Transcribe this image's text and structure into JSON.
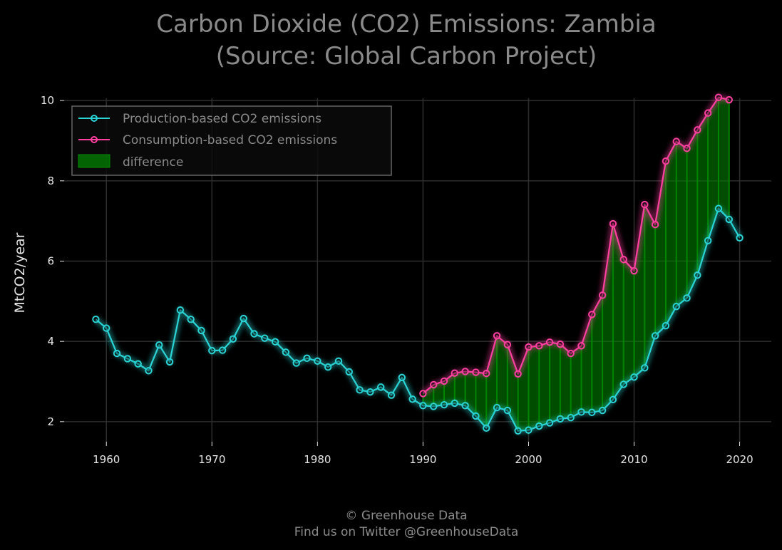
{
  "chart_data": {
    "type": "line",
    "title": "Carbon Dioxide (CO2) Emissions: Zambia",
    "subtitle": "(Source: Global Carbon Project)",
    "xlabel": "",
    "ylabel": "MtCO2/year",
    "xlim": [
      1956,
      2023
    ],
    "ylim": [
      1.5,
      10.5
    ],
    "x_ticks": [
      "1960",
      "1970",
      "1980",
      "1990",
      "2000",
      "2010",
      "2020"
    ],
    "y_ticks": [
      "2",
      "4",
      "6",
      "8",
      "10"
    ],
    "grid": true,
    "legend_position": "top-left",
    "background": "#000000",
    "series": [
      {
        "name": "Production-based CO2 emissions",
        "color": "#2ad4d4",
        "x": [
          1959,
          1960,
          1961,
          1962,
          1963,
          1964,
          1965,
          1966,
          1967,
          1968,
          1969,
          1970,
          1971,
          1972,
          1973,
          1974,
          1975,
          1976,
          1977,
          1978,
          1979,
          1980,
          1981,
          1982,
          1983,
          1984,
          1985,
          1986,
          1987,
          1988,
          1989,
          1990,
          1991,
          1992,
          1993,
          1994,
          1995,
          1996,
          1997,
          1998,
          1999,
          2000,
          2001,
          2002,
          2003,
          2004,
          2005,
          2006,
          2007,
          2008,
          2009,
          2010,
          2011,
          2012,
          2013,
          2014,
          2015,
          2016,
          2017,
          2018,
          2019,
          2020
        ],
        "y": [
          4.55,
          4.33,
          3.7,
          3.57,
          3.44,
          3.27,
          3.91,
          3.49,
          4.78,
          4.55,
          4.27,
          3.77,
          3.78,
          4.06,
          4.57,
          4.19,
          4.08,
          3.99,
          3.73,
          3.46,
          3.58,
          3.51,
          3.36,
          3.51,
          3.24,
          2.79,
          2.74,
          2.86,
          2.66,
          3.1,
          2.56,
          2.4,
          2.38,
          2.42,
          2.46,
          2.4,
          2.14,
          1.84,
          2.35,
          2.28,
          1.77,
          1.79,
          1.89,
          1.97,
          2.07,
          2.1,
          2.24,
          2.23,
          2.28,
          2.55,
          2.93,
          3.11,
          3.34,
          4.14,
          4.39,
          4.87,
          5.08,
          5.65,
          6.51,
          7.31,
          7.04,
          6.58
        ]
      },
      {
        "name": "Consumption-based CO2 emissions",
        "color": "#ff40a0",
        "x": [
          1990,
          1991,
          1992,
          1993,
          1994,
          1995,
          1996,
          1997,
          1998,
          1999,
          2000,
          2001,
          2002,
          2003,
          2004,
          2005,
          2006,
          2007,
          2008,
          2009,
          2010,
          2011,
          2012,
          2013,
          2014,
          2015,
          2016,
          2017,
          2018,
          2019
        ],
        "y": [
          2.7,
          2.92,
          3.01,
          3.21,
          3.25,
          3.23,
          3.2,
          4.14,
          3.92,
          3.19,
          3.86,
          3.89,
          3.98,
          3.93,
          3.7,
          3.89,
          4.67,
          5.15,
          6.93,
          6.04,
          5.76,
          7.41,
          6.91,
          8.49,
          8.98,
          8.81,
          9.27,
          9.69,
          10.08,
          10.02
        ]
      }
    ],
    "fill": {
      "name": "difference",
      "color": "#008c00"
    }
  },
  "footer": {
    "line1": "© Greenhouse Data",
    "line2": "Find us on Twitter @GreenhouseData"
  }
}
